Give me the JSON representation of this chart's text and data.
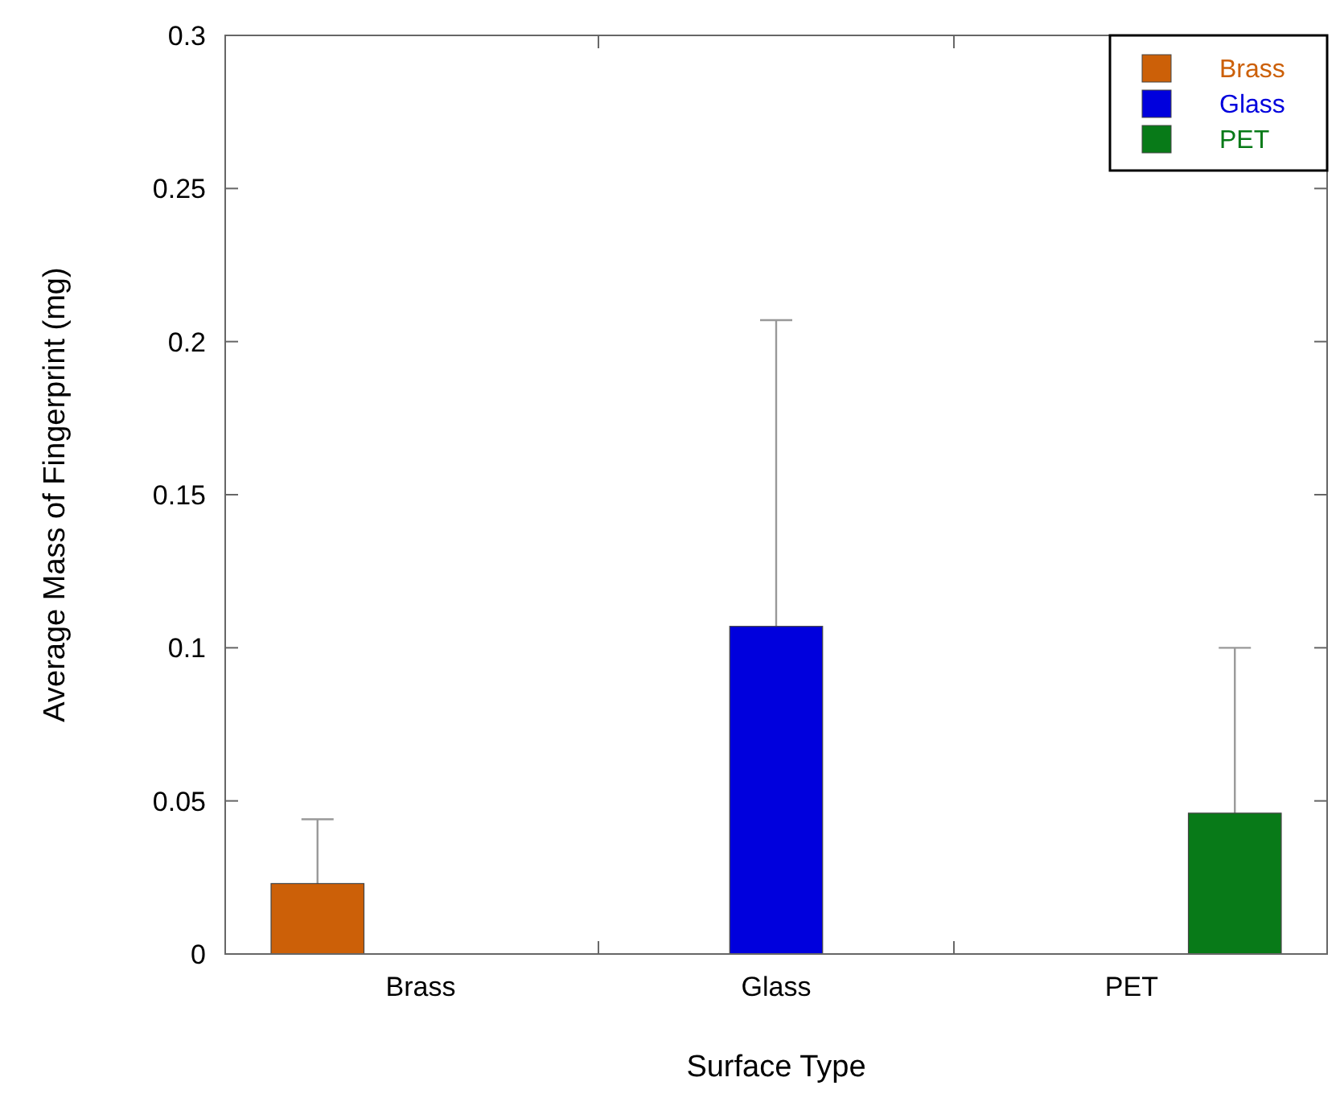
{
  "chart_data": {
    "type": "bar",
    "xlabel": "Surface Type",
    "ylabel": "Average Mass of Fingerprint (mg)",
    "categories": [
      "Brass",
      "Glass",
      "PET"
    ],
    "series": [
      {
        "name": "Brass",
        "color": "#cc6008",
        "values": [
          0.023,
          null,
          null
        ],
        "errors": [
          [
            0.023,
            0.044
          ],
          null,
          null
        ]
      },
      {
        "name": "Glass",
        "color": "#0000dd",
        "values": [
          null,
          0.107,
          null
        ],
        "errors": [
          null,
          [
            0.107,
            0.207
          ],
          null
        ]
      },
      {
        "name": "PET",
        "color": "#087a18",
        "values": [
          null,
          null,
          0.046
        ],
        "errors": [
          null,
          null,
          [
            0.046,
            0.1
          ]
        ]
      }
    ],
    "ylim": [
      0,
      0.3
    ],
    "yticks": [
      0,
      0.05,
      0.1,
      0.15,
      0.2,
      0.25,
      0.3
    ],
    "grid": false,
    "legend": "top right"
  }
}
